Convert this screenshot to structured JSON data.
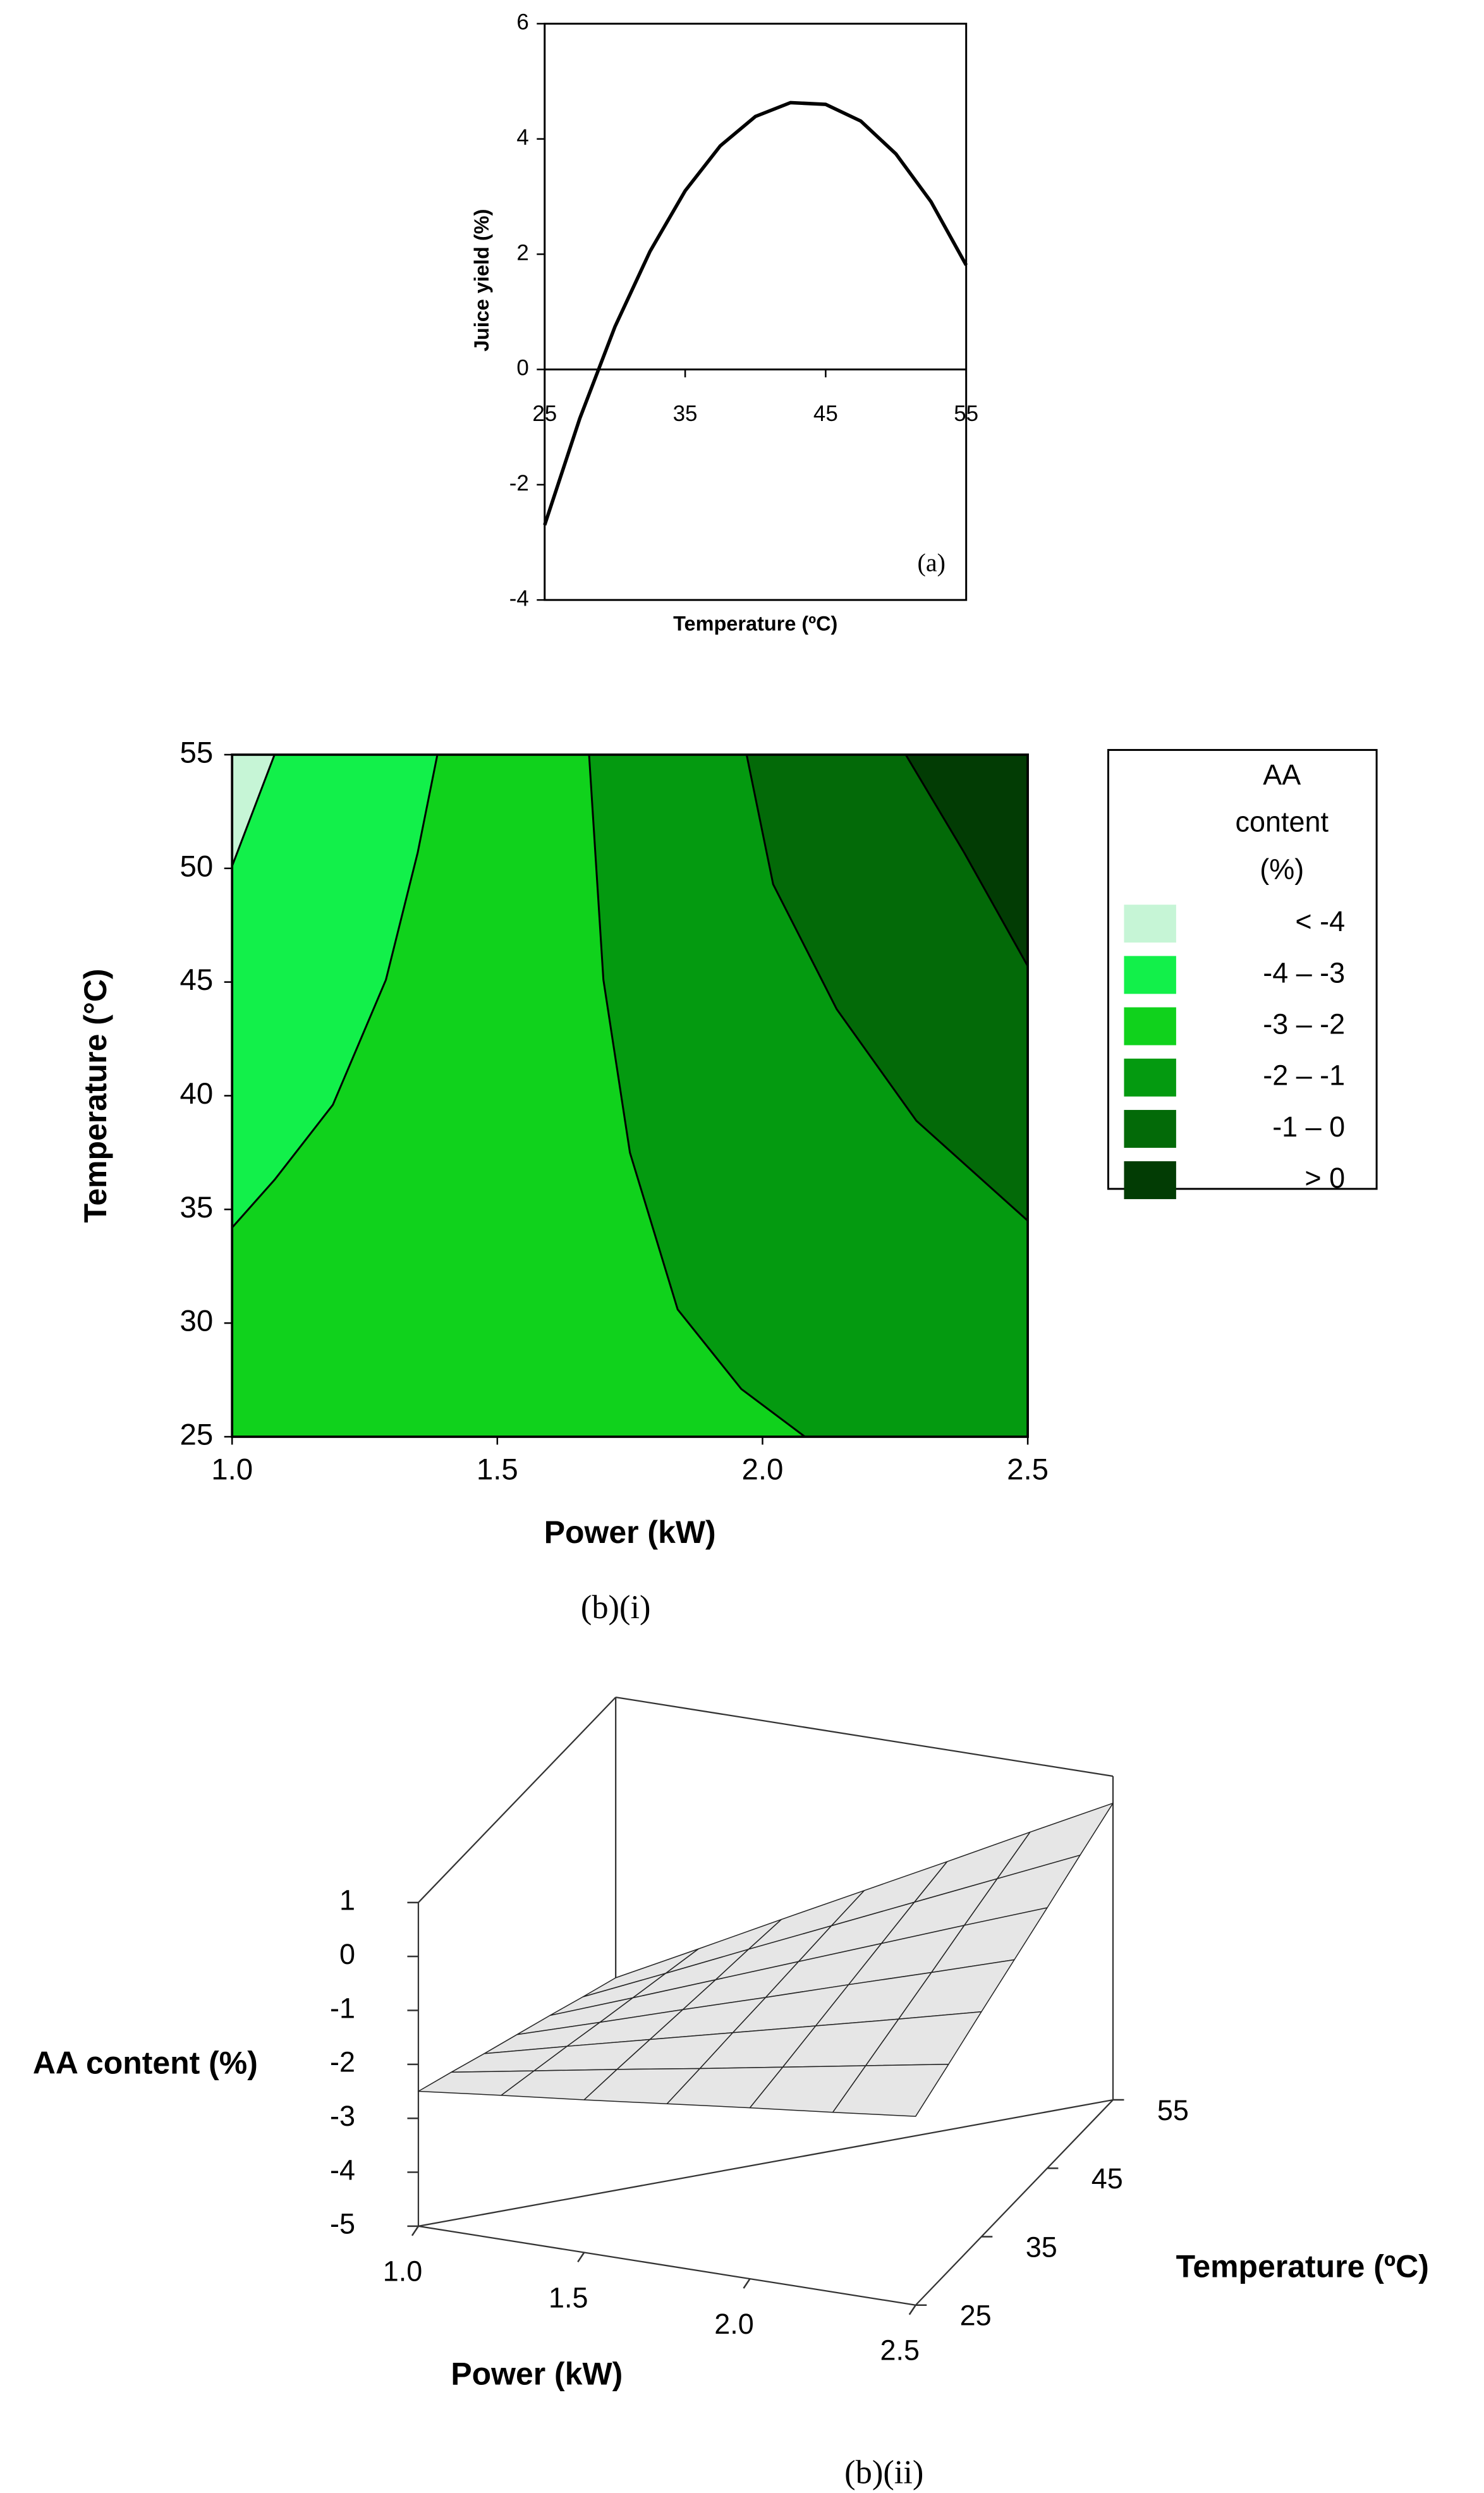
{
  "chart_data": [
    {
      "type": "line",
      "x": [
        25,
        27.5,
        30,
        32.5,
        35,
        37.5,
        40,
        42.5,
        45,
        47.5,
        50,
        52.5,
        55
      ],
      "values": [
        -2.7,
        -0.85,
        0.74,
        2.05,
        3.1,
        3.88,
        4.39,
        4.63,
        4.6,
        4.31,
        3.74,
        2.91,
        1.81
      ],
      "color": "#000000",
      "xlim": [
        25,
        55
      ],
      "ylim": [
        -4,
        6
      ],
      "xticks": [
        25,
        35,
        45,
        55
      ],
      "yticks": [
        -4,
        -2,
        0,
        2,
        4,
        6
      ],
      "xlabel": "Temperature (ºC)",
      "ylabel": "Juice yield (%)",
      "annotation": "(a)"
    },
    {
      "type": "contour",
      "caption": "(b)(i)",
      "xlabel": "Power (kW)",
      "ylabel": "Temperature (°C)",
      "xlim": [
        1,
        2.5
      ],
      "ylim": [
        25,
        55
      ],
      "xticks": [
        {
          "value": 1,
          "label": "1.0"
        },
        {
          "value": 1.5,
          "label": "1.5"
        },
        {
          "value": 2,
          "label": "2.0"
        },
        {
          "value": 2.5,
          "label": "2.5"
        }
      ],
      "yticks": [
        25,
        30,
        35,
        40,
        45,
        50,
        55
      ],
      "legend_title": [
        "AA",
        "content",
        "(%)"
      ],
      "bands": [
        {
          "label": "< -4",
          "color": "#c6f5d6"
        },
        {
          "label": "-4 – -3",
          "color": "#12f04a"
        },
        {
          "label": "-3 – -2",
          "color": "#10d21c"
        },
        {
          "label": "-2 – -1",
          "color": "#049a10"
        },
        {
          "label": "-1 – 0",
          "color": "#036a08"
        },
        {
          "label": "> 0",
          "color": "#023c04"
        }
      ],
      "boundaries": [
        {
          "x": [
            1.08,
            1.0
          ],
          "y": [
            55,
            50.1
          ]
        },
        {
          "x": [
            1.387,
            1.35,
            1.29,
            1.19,
            1.08,
            1.0
          ],
          "y": [
            55,
            50.7,
            45.1,
            39.6,
            36.3,
            34.2
          ]
        },
        {
          "x": [
            1.673,
            1.7,
            1.75,
            1.84,
            1.96,
            2.08
          ],
          "y": [
            55,
            45.1,
            37.5,
            30.6,
            27.1,
            25
          ]
        },
        {
          "x": [
            1.97,
            2.02,
            2.14,
            2.29,
            2.5
          ],
          "y": [
            55,
            49.3,
            43.8,
            38.9,
            34.5
          ]
        },
        {
          "x": [
            2.27,
            2.38,
            2.5
          ],
          "y": [
            55,
            50.7,
            45.7
          ]
        }
      ]
    },
    {
      "type": "surface",
      "caption": "(b)(ii)",
      "xlabel": "Power (kW)",
      "ylabel": "Temperature (ºC)",
      "zlabel": "AA content (%)",
      "x": [
        1,
        1.25,
        1.5,
        1.75,
        2,
        2.25,
        2.5
      ],
      "y": [
        25,
        30,
        35,
        40,
        45,
        50,
        55
      ],
      "z": [
        [
          -2.5,
          -2.33,
          -2.17,
          -2.0,
          -1.83,
          -1.67,
          -1.5
        ],
        [
          -2.78,
          -2.51,
          -2.24,
          -1.98,
          -1.71,
          -1.44,
          -1.17
        ],
        [
          -3.07,
          -2.69,
          -2.32,
          -1.95,
          -1.58,
          -1.21,
          -0.83
        ],
        [
          -3.35,
          -2.88,
          -2.4,
          -1.93,
          -1.45,
          -0.98,
          -0.5
        ],
        [
          -3.63,
          -3.06,
          -2.48,
          -1.9,
          -1.32,
          -0.74,
          -0.17
        ],
        [
          -3.92,
          -3.24,
          -2.55,
          -1.87,
          -1.19,
          -0.51,
          0.17
        ],
        [
          -4.2,
          -3.42,
          -2.63,
          -1.85,
          -1.07,
          -0.28,
          0.5
        ]
      ],
      "color": "#e6e6e6",
      "xlim": [
        1,
        2.5
      ],
      "ylim": [
        25,
        55
      ],
      "zlim": [
        -5,
        1
      ],
      "xticks": [
        {
          "value": 1,
          "label": "1.0"
        },
        {
          "value": 1.5,
          "label": "1.5"
        },
        {
          "value": 2,
          "label": "2.0"
        },
        {
          "value": 2.5,
          "label": "2.5"
        }
      ],
      "yticks": [
        25,
        35,
        45,
        55
      ],
      "zticks": [
        -5,
        -4,
        -3,
        -2,
        -1,
        0,
        1
      ]
    }
  ]
}
